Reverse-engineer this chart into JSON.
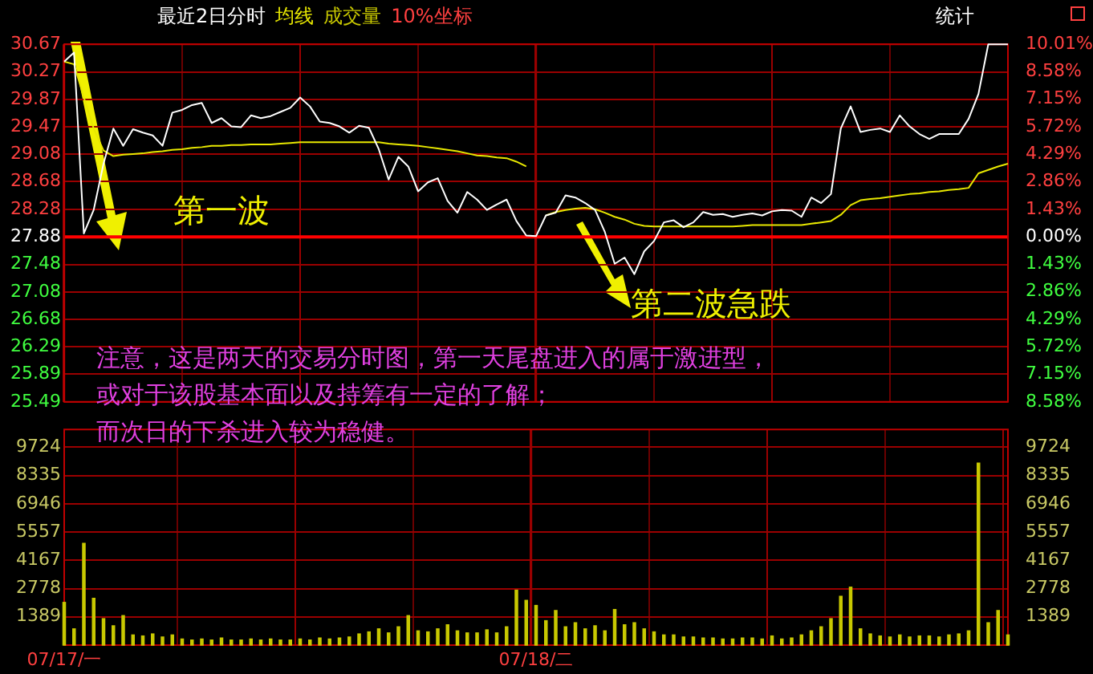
{
  "chart_data": [
    {
      "type": "line",
      "title": "最近2日分时",
      "legend": "top left",
      "grid": true,
      "tick_labels": "y",
      "series": [
        {
          "color": "#ffffff",
          "values": [
            30.42,
            30.55,
            27.93,
            28.27,
            28.94,
            29.45,
            29.2,
            29.44,
            29.39,
            29.35,
            29.2,
            29.68,
            29.72,
            29.79,
            29.82,
            29.53,
            29.6,
            29.48,
            29.47,
            29.64,
            29.6,
            29.63,
            29.69,
            29.75,
            29.9,
            29.77,
            29.55,
            29.53,
            29.48,
            29.39,
            29.49,
            29.46,
            29.15,
            28.71,
            29.04,
            28.9,
            28.54,
            28.67,
            28.73,
            28.4,
            28.23,
            28.53,
            28.42,
            28.27,
            28.35,
            28.42,
            28.11,
            27.9,
            27.89,
            28.19,
            28.23,
            28.48,
            28.45,
            28.37,
            28.27,
            27.95,
            27.49,
            27.58,
            27.34,
            27.67,
            27.82,
            28.09,
            28.12,
            28.02,
            28.09,
            28.24,
            28.2,
            28.21,
            28.17,
            28.2,
            28.22,
            28.19,
            28.25,
            28.27,
            28.26,
            28.17,
            28.45,
            28.37,
            28.5,
            29.45,
            29.77,
            29.4,
            29.43,
            29.45,
            29.4,
            29.64,
            29.48,
            29.37,
            29.3,
            29.37,
            29.37,
            29.37,
            29.59,
            29.95,
            30.67,
            30.67,
            30.67
          ]
        },
        {
          "name": "均线",
          "color": "#e8e800",
          "values": [
            30.42,
            30.38,
            29.9,
            29.45,
            29.13,
            29.05,
            29.07,
            29.08,
            29.09,
            29.11,
            29.12,
            29.14,
            29.15,
            29.17,
            29.18,
            29.2,
            29.2,
            29.21,
            29.21,
            29.22,
            29.22,
            29.22,
            29.23,
            29.24,
            29.25,
            29.25,
            29.25,
            29.25,
            29.25,
            29.25,
            29.25,
            29.25,
            29.25,
            29.23,
            29.22,
            29.21,
            29.2,
            29.18,
            29.16,
            29.14,
            29.12,
            29.09,
            29.06,
            29.05,
            29.03,
            29.02,
            28.97,
            28.9,
            null,
            28.19,
            28.24,
            28.27,
            28.29,
            28.3,
            28.28,
            28.23,
            28.17,
            28.13,
            28.07,
            28.04,
            28.03,
            28.03,
            28.03,
            28.03,
            28.03,
            28.03,
            28.03,
            28.03,
            28.03,
            28.04,
            28.05,
            28.05,
            28.05,
            28.05,
            28.05,
            28.05,
            28.07,
            28.09,
            28.11,
            28.2,
            28.34,
            28.41,
            28.43,
            28.44,
            28.46,
            28.48,
            28.5,
            28.51,
            28.53,
            28.54,
            28.56,
            28.57,
            28.59,
            28.8,
            28.85,
            28.9,
            28.94
          ]
        }
      ],
      "ylim": [
        25.49,
        30.67
      ],
      "yticks": [
        25.49,
        25.89,
        26.29,
        26.68,
        27.08,
        27.48,
        27.88,
        28.28,
        28.68,
        29.08,
        29.47,
        29.87,
        30.27,
        30.67
      ],
      "y2lim": [
        -8.58,
        10.01
      ],
      "y2ticks": [
        {
          "value": -8.58,
          "label": "8.58%"
        },
        {
          "value": -7.15,
          "label": "7.15%"
        },
        {
          "value": -5.72,
          "label": "5.72%"
        },
        {
          "value": -4.29,
          "label": "4.29%"
        },
        {
          "value": -2.86,
          "label": "2.86%"
        },
        {
          "value": -1.43,
          "label": "1.43%"
        },
        {
          "value": 0,
          "label": "0.00%"
        },
        {
          "value": 1.43,
          "label": "1.43%"
        },
        {
          "value": 2.86,
          "label": "2.86%"
        },
        {
          "value": 4.29,
          "label": "4.29%"
        },
        {
          "value": 5.72,
          "label": "5.72%"
        },
        {
          "value": 7.15,
          "label": "7.15%"
        },
        {
          "value": 8.58,
          "label": "8.58%"
        },
        {
          "value": 10.01,
          "label": "10.01%"
        }
      ],
      "ref_lines": [
        {
          "axis": "y",
          "value": 27.88,
          "color": "#ff0000"
        }
      ],
      "annotations": [
        "10%坐标",
        "统计",
        "第一波",
        "第二波急跌",
        "注意，这是两天的交易分时图，第一天尾盘进入的属于激进型，",
        "或对于该股基本面以及持筹有一定的了解；",
        "而次日的下杀进入较为稳健。"
      ]
    },
    {
      "type": "bar",
      "legend": "top left",
      "grid": true,
      "categories": [
        "07/17/一",
        null,
        null,
        null,
        null,
        null,
        null,
        null,
        null,
        null,
        null,
        null,
        null,
        null,
        null,
        null,
        null,
        null,
        null,
        null,
        null,
        null,
        null,
        null,
        null,
        null,
        null,
        null,
        null,
        null,
        null,
        null,
        null,
        null,
        null,
        null,
        null,
        null,
        null,
        null,
        null,
        null,
        null,
        null,
        null,
        null,
        null,
        null,
        "07/18/二",
        null,
        null,
        null,
        null,
        null,
        null,
        null,
        null,
        null,
        null,
        null,
        null,
        null,
        null,
        null,
        null,
        null,
        null,
        null,
        null,
        null,
        null,
        null,
        null,
        null,
        null,
        null,
        null,
        null,
        null,
        null,
        null,
        null,
        null,
        null,
        null,
        null,
        null,
        null,
        null,
        null,
        null,
        null,
        null,
        null,
        null,
        null,
        null
      ],
      "series": [
        {
          "name": "成交量",
          "color": "#c8c800",
          "values": [
            2100,
            800,
            5000,
            2300,
            1300,
            950,
            1450,
            500,
            450,
            550,
            400,
            500,
            300,
            250,
            300,
            250,
            350,
            250,
            250,
            300,
            250,
            300,
            250,
            250,
            300,
            250,
            350,
            300,
            350,
            400,
            550,
            650,
            800,
            600,
            900,
            1450,
            700,
            650,
            800,
            1000,
            700,
            600,
            600,
            750,
            600,
            900,
            2700,
            2200,
            1950,
            1200,
            1700,
            900,
            1100,
            800,
            950,
            700,
            1750,
            1000,
            1100,
            800,
            650,
            500,
            500,
            400,
            400,
            350,
            350,
            300,
            300,
            350,
            350,
            300,
            450,
            300,
            350,
            500,
            700,
            900,
            1300,
            2400,
            2850,
            800,
            550,
            450,
            400,
            500,
            400,
            450,
            450,
            400,
            500,
            550,
            700,
            8950,
            1100,
            1700,
            500
          ]
        }
      ],
      "ylim": [
        0,
        10600
      ],
      "yticks": [
        1389,
        2778,
        4167,
        5557,
        6946,
        8335,
        9724
      ],
      "y2lim": [
        0,
        10600
      ],
      "y2ticks": [
        1389,
        2778,
        4167,
        5557,
        6946,
        8335,
        9724
      ]
    }
  ]
}
